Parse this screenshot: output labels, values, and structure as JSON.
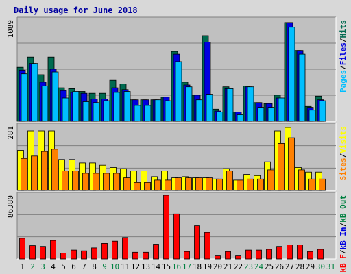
{
  "chart_data": {
    "type": "bar",
    "title": "Daily usage for June 2018",
    "categories": [
      "1",
      "2",
      "3",
      "4",
      "5",
      "6",
      "7",
      "8",
      "9",
      "10",
      "11",
      "12",
      "13",
      "14",
      "15",
      "16",
      "17",
      "18",
      "19",
      "20",
      "21",
      "22",
      "23",
      "24",
      "25",
      "26",
      "27",
      "28",
      "29",
      "30",
      "31"
    ],
    "weekend_days": [
      "2",
      "3",
      "9",
      "10",
      "16",
      "17",
      "23",
      "24",
      "30",
      "31"
    ],
    "panels": [
      {
        "id": "top",
        "ymax_label": "1089",
        "ymax": 1089,
        "side_label": {
          "parts": [
            "Pages",
            "Files",
            "Hits"
          ],
          "separator": "/"
        },
        "series": [
          {
            "name": "Hits",
            "color": "#006a50",
            "values": [
              580,
              690,
              500,
              690,
              360,
              350,
              320,
              300,
              300,
              440,
              400,
              230,
              230,
              230,
              260,
              750,
              420,
              280,
              920,
              130,
              370,
              100,
              380,
              200,
              190,
              280,
              1060,
              760,
              160,
              270,
              0
            ]
          },
          {
            "name": "Files",
            "color": "#0000e0",
            "values": [
              550,
              620,
              420,
              560,
              330,
              310,
              300,
              240,
              240,
              360,
              340,
              230,
              230,
              230,
              260,
              720,
              390,
              280,
              850,
              110,
              350,
              100,
              370,
              200,
              190,
              250,
              1060,
              760,
              150,
              230,
              0
            ]
          },
          {
            "name": "Pages",
            "color": "#00bfff",
            "values": [
              510,
              620,
              380,
              530,
              250,
              320,
              210,
              200,
              220,
              310,
              320,
              170,
              170,
              230,
              220,
              640,
              370,
              230,
              290,
              100,
              350,
              70,
              370,
              150,
              150,
              250,
              1010,
              720,
              120,
              220,
              0
            ]
          }
        ]
      },
      {
        "id": "middle",
        "ymax_label": "281",
        "ymax": 281,
        "side_label": {
          "parts": [
            "Sites",
            "Visits"
          ],
          "separator": "/"
        },
        "series": [
          {
            "name": "Visits",
            "color": "#ffff00",
            "values": [
              175,
              260,
              260,
              260,
              135,
              135,
              120,
              120,
              110,
              100,
              95,
              85,
              85,
              60,
              85,
              55,
              60,
              55,
              55,
              50,
              95,
              45,
              70,
              65,
              125,
              260,
              275,
              100,
              80,
              80,
              0
            ]
          },
          {
            "name": "Sites",
            "color": "#ff8000",
            "values": [
              140,
              150,
              170,
              180,
              85,
              85,
              75,
              75,
              75,
              75,
              55,
              35,
              35,
              45,
              45,
              55,
              55,
              55,
              55,
              50,
              85,
              45,
              50,
              50,
              90,
              205,
              230,
              90,
              50,
              50,
              0
            ]
          }
        ]
      },
      {
        "id": "bottom",
        "ymax_label": "86380",
        "ymax": 86380,
        "side_label": {
          "parts": [
            "kB F",
            "kB In",
            "kB Out"
          ],
          "separator": "/"
        },
        "series": [
          {
            "name": "kB F",
            "color": "#ff0000",
            "values": [
              28000,
              18000,
              17000,
              25000,
              8000,
              12000,
              11000,
              15000,
              21000,
              24000,
              29000,
              9000,
              9000,
              20000,
              86380,
              61000,
              10000,
              45000,
              36000,
              5000,
              10000,
              5000,
              12000,
              12000,
              13000,
              17000,
              19000,
              19000,
              10000,
              13000,
              0
            ]
          }
        ]
      }
    ],
    "colors": {
      "title": "#0000a0",
      "plot_bg": "#c0c0c0",
      "frame_bg": "#d8d8d8",
      "axis_label": "#000000",
      "weekday_label": "#000000",
      "weekend_label": "#008040",
      "hits": "#006a50",
      "files": "#0000e0",
      "pages": "#00bfff",
      "visits": "#ffff00",
      "sites": "#ff8000",
      "kbf": "#ff0000",
      "kbin": "#0000e0",
      "kbout": "#008040"
    },
    "grid": true
  }
}
